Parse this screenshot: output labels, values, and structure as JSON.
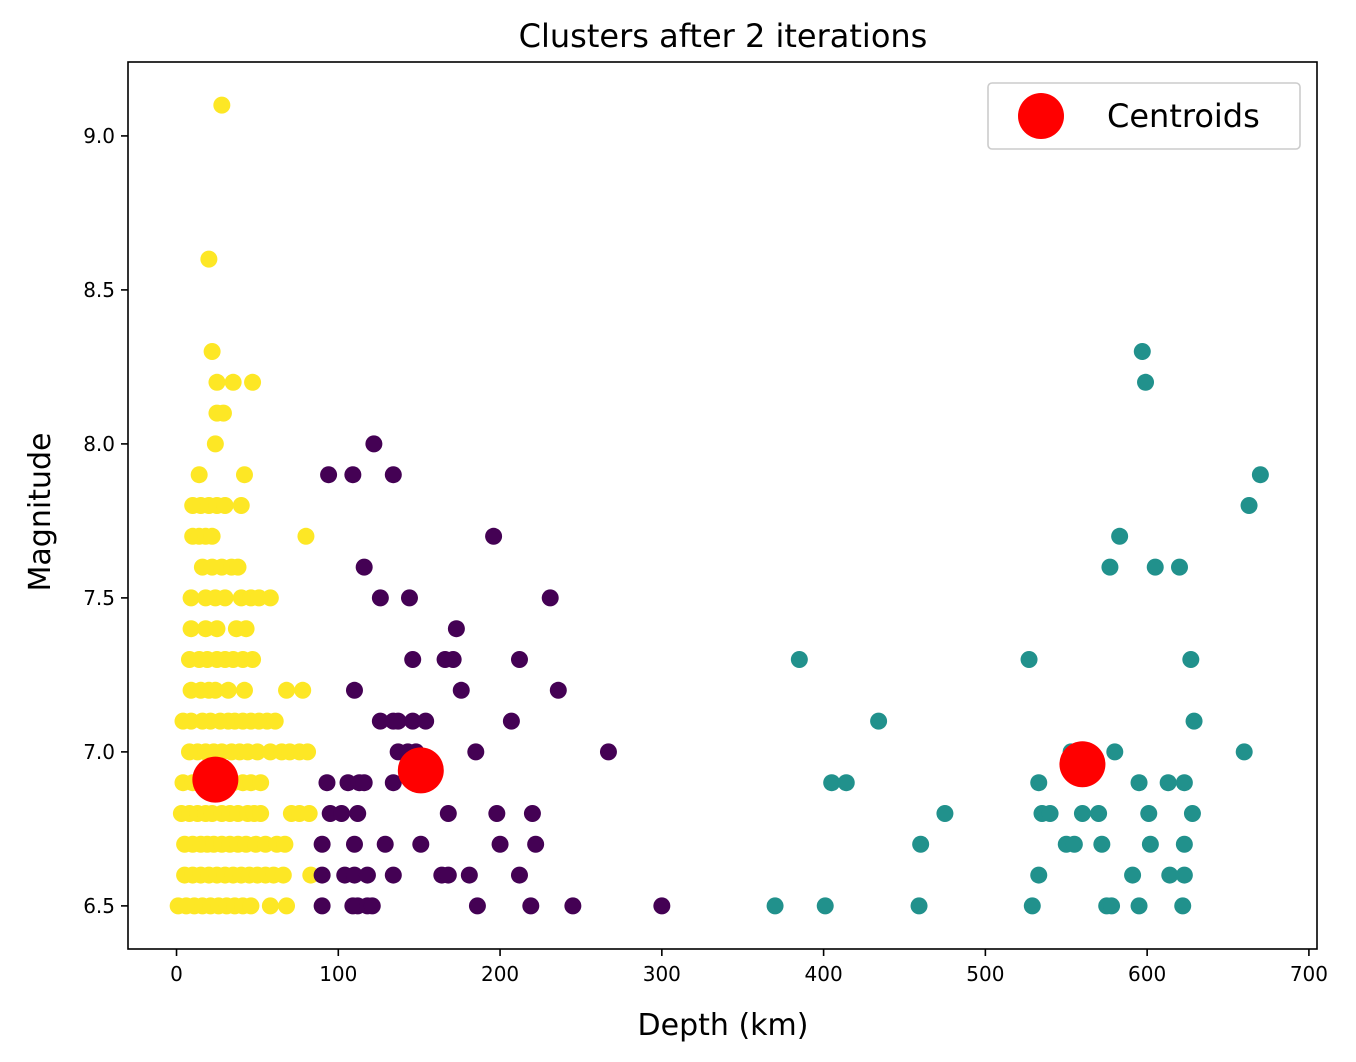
{
  "chart_data": {
    "type": "scatter",
    "title": "Clusters after 2 iterations",
    "xlabel": "Depth (km)",
    "ylabel": "Magnitude",
    "xlim": [
      -30,
      705
    ],
    "ylim": [
      6.36,
      9.24
    ],
    "xticks": [
      0,
      100,
      200,
      300,
      400,
      500,
      600,
      700
    ],
    "yticks": [
      6.5,
      7.0,
      7.5,
      8.0,
      8.5,
      9.0
    ],
    "xtick_labels": [
      "0",
      "100",
      "200",
      "300",
      "400",
      "500",
      "600",
      "700"
    ],
    "ytick_labels": [
      "6.5",
      "7.0",
      "7.5",
      "8.0",
      "8.5",
      "9.0"
    ],
    "grid": false,
    "legend": {
      "position": "top-right",
      "entries": [
        "Centroids"
      ]
    },
    "colors": {
      "cluster_0": "#440154",
      "cluster_1": "#21918c",
      "cluster_2": "#fde725",
      "centroid": "#ff0000"
    },
    "series": [
      {
        "cluster": 2,
        "color": "#fde725",
        "points": [
          [
            28,
            9.1
          ],
          [
            20,
            8.6
          ],
          [
            22,
            8.3
          ],
          [
            25,
            8.2
          ],
          [
            35,
            8.2
          ],
          [
            47,
            8.2
          ],
          [
            25,
            8.1
          ],
          [
            29,
            8.1
          ],
          [
            24,
            8.0
          ],
          [
            14,
            7.9
          ],
          [
            42,
            7.9
          ],
          [
            10,
            7.8
          ],
          [
            15,
            7.8
          ],
          [
            20,
            7.8
          ],
          [
            25,
            7.8
          ],
          [
            30,
            7.8
          ],
          [
            40,
            7.8
          ],
          [
            80,
            7.7
          ],
          [
            10,
            7.7
          ],
          [
            14,
            7.7
          ],
          [
            18,
            7.7
          ],
          [
            22,
            7.7
          ],
          [
            16,
            7.6
          ],
          [
            22,
            7.6
          ],
          [
            28,
            7.6
          ],
          [
            34,
            7.6
          ],
          [
            38,
            7.6
          ],
          [
            9,
            7.5
          ],
          [
            18,
            7.5
          ],
          [
            24,
            7.5
          ],
          [
            30,
            7.5
          ],
          [
            40,
            7.5
          ],
          [
            46,
            7.5
          ],
          [
            51,
            7.5
          ],
          [
            58,
            7.5
          ],
          [
            9,
            7.4
          ],
          [
            18,
            7.4
          ],
          [
            25,
            7.4
          ],
          [
            37,
            7.4
          ],
          [
            43,
            7.4
          ],
          [
            8,
            7.3
          ],
          [
            14,
            7.3
          ],
          [
            19,
            7.3
          ],
          [
            25,
            7.3
          ],
          [
            30,
            7.3
          ],
          [
            35,
            7.3
          ],
          [
            41,
            7.3
          ],
          [
            47,
            7.3
          ],
          [
            9,
            7.2
          ],
          [
            15,
            7.2
          ],
          [
            20,
            7.2
          ],
          [
            24,
            7.2
          ],
          [
            32,
            7.2
          ],
          [
            42,
            7.2
          ],
          [
            68,
            7.2
          ],
          [
            78,
            7.2
          ],
          [
            4,
            7.1
          ],
          [
            9,
            7.1
          ],
          [
            16,
            7.1
          ],
          [
            21,
            7.1
          ],
          [
            27,
            7.1
          ],
          [
            32,
            7.1
          ],
          [
            36,
            7.1
          ],
          [
            41,
            7.1
          ],
          [
            46,
            7.1
          ],
          [
            51,
            7.1
          ],
          [
            56,
            7.1
          ],
          [
            61,
            7.1
          ],
          [
            8,
            7.0
          ],
          [
            13,
            7.0
          ],
          [
            18,
            7.0
          ],
          [
            23,
            7.0
          ],
          [
            28,
            7.0
          ],
          [
            34,
            7.0
          ],
          [
            39,
            7.0
          ],
          [
            44,
            7.0
          ],
          [
            50,
            7.0
          ],
          [
            58,
            7.0
          ],
          [
            65,
            7.0
          ],
          [
            70,
            7.0
          ],
          [
            76,
            7.0
          ],
          [
            81,
            7.0
          ],
          [
            4,
            6.9
          ],
          [
            10,
            6.9
          ],
          [
            16,
            6.9
          ],
          [
            35,
            6.9
          ],
          [
            41,
            6.9
          ],
          [
            46,
            6.9
          ],
          [
            52,
            6.9
          ],
          [
            3,
            6.8
          ],
          [
            8,
            6.8
          ],
          [
            13,
            6.8
          ],
          [
            18,
            6.8
          ],
          [
            22,
            6.8
          ],
          [
            28,
            6.8
          ],
          [
            33,
            6.8
          ],
          [
            38,
            6.8
          ],
          [
            44,
            6.8
          ],
          [
            48,
            6.8
          ],
          [
            52,
            6.8
          ],
          [
            71,
            6.8
          ],
          [
            76,
            6.8
          ],
          [
            82,
            6.8
          ],
          [
            5,
            6.7
          ],
          [
            10,
            6.7
          ],
          [
            15,
            6.7
          ],
          [
            19,
            6.7
          ],
          [
            23,
            6.7
          ],
          [
            28,
            6.7
          ],
          [
            33,
            6.7
          ],
          [
            38,
            6.7
          ],
          [
            43,
            6.7
          ],
          [
            49,
            6.7
          ],
          [
            55,
            6.7
          ],
          [
            62,
            6.7
          ],
          [
            67,
            6.7
          ],
          [
            5,
            6.6
          ],
          [
            10,
            6.6
          ],
          [
            15,
            6.6
          ],
          [
            20,
            6.6
          ],
          [
            25,
            6.6
          ],
          [
            30,
            6.6
          ],
          [
            35,
            6.6
          ],
          [
            40,
            6.6
          ],
          [
            45,
            6.6
          ],
          [
            50,
            6.6
          ],
          [
            55,
            6.6
          ],
          [
            60,
            6.6
          ],
          [
            66,
            6.6
          ],
          [
            83,
            6.6
          ],
          [
            1,
            6.5
          ],
          [
            6,
            6.5
          ],
          [
            11,
            6.5
          ],
          [
            16,
            6.5
          ],
          [
            21,
            6.5
          ],
          [
            26,
            6.5
          ],
          [
            31,
            6.5
          ],
          [
            36,
            6.5
          ],
          [
            41,
            6.5
          ],
          [
            46,
            6.5
          ],
          [
            58,
            6.5
          ],
          [
            68,
            6.5
          ]
        ]
      },
      {
        "cluster": 0,
        "color": "#440154",
        "points": [
          [
            122,
            8.0
          ],
          [
            94,
            7.9
          ],
          [
            109,
            7.9
          ],
          [
            134,
            7.9
          ],
          [
            196,
            7.7
          ],
          [
            116,
            7.6
          ],
          [
            126,
            7.5
          ],
          [
            144,
            7.5
          ],
          [
            231,
            7.5
          ],
          [
            173,
            7.4
          ],
          [
            146,
            7.3
          ],
          [
            166,
            7.3
          ],
          [
            171,
            7.3
          ],
          [
            212,
            7.3
          ],
          [
            110,
            7.2
          ],
          [
            176,
            7.2
          ],
          [
            236,
            7.2
          ],
          [
            126,
            7.1
          ],
          [
            134,
            7.1
          ],
          [
            137,
            7.1
          ],
          [
            146,
            7.1
          ],
          [
            154,
            7.1
          ],
          [
            207,
            7.1
          ],
          [
            137,
            7.0
          ],
          [
            143,
            7.0
          ],
          [
            148,
            7.0
          ],
          [
            185,
            7.0
          ],
          [
            267,
            7.0
          ],
          [
            93,
            6.9
          ],
          [
            106,
            6.9
          ],
          [
            113,
            6.9
          ],
          [
            116,
            6.9
          ],
          [
            134,
            6.9
          ],
          [
            95,
            6.8
          ],
          [
            102,
            6.8
          ],
          [
            112,
            6.8
          ],
          [
            168,
            6.8
          ],
          [
            198,
            6.8
          ],
          [
            220,
            6.8
          ],
          [
            90,
            6.7
          ],
          [
            110,
            6.7
          ],
          [
            129,
            6.7
          ],
          [
            151,
            6.7
          ],
          [
            200,
            6.7
          ],
          [
            222,
            6.7
          ],
          [
            90,
            6.6
          ],
          [
            104,
            6.6
          ],
          [
            110,
            6.6
          ],
          [
            118,
            6.6
          ],
          [
            134,
            6.6
          ],
          [
            164,
            6.6
          ],
          [
            168,
            6.6
          ],
          [
            181,
            6.6
          ],
          [
            212,
            6.6
          ],
          [
            90,
            6.5
          ],
          [
            109,
            6.5
          ],
          [
            112,
            6.5
          ],
          [
            118,
            6.5
          ],
          [
            121,
            6.5
          ],
          [
            186,
            6.5
          ],
          [
            219,
            6.5
          ],
          [
            245,
            6.5
          ],
          [
            300,
            6.5
          ]
        ]
      },
      {
        "cluster": 1,
        "color": "#21918c",
        "points": [
          [
            597,
            8.3
          ],
          [
            599,
            8.2
          ],
          [
            670,
            7.9
          ],
          [
            663,
            7.8
          ],
          [
            583,
            7.7
          ],
          [
            577,
            7.6
          ],
          [
            605,
            7.6
          ],
          [
            620,
            7.6
          ],
          [
            385,
            7.3
          ],
          [
            527,
            7.3
          ],
          [
            627,
            7.3
          ],
          [
            434,
            7.1
          ],
          [
            629,
            7.1
          ],
          [
            553,
            7.0
          ],
          [
            580,
            7.0
          ],
          [
            660,
            7.0
          ],
          [
            405,
            6.9
          ],
          [
            414,
            6.9
          ],
          [
            533,
            6.9
          ],
          [
            595,
            6.9
          ],
          [
            613,
            6.9
          ],
          [
            623,
            6.9
          ],
          [
            475,
            6.8
          ],
          [
            535,
            6.8
          ],
          [
            540,
            6.8
          ],
          [
            560,
            6.8
          ],
          [
            570,
            6.8
          ],
          [
            601,
            6.8
          ],
          [
            628,
            6.8
          ],
          [
            460,
            6.7
          ],
          [
            550,
            6.7
          ],
          [
            555,
            6.7
          ],
          [
            572,
            6.7
          ],
          [
            602,
            6.7
          ],
          [
            623,
            6.7
          ],
          [
            533,
            6.6
          ],
          [
            591,
            6.6
          ],
          [
            614,
            6.6
          ],
          [
            623,
            6.6
          ],
          [
            370,
            6.5
          ],
          [
            401,
            6.5
          ],
          [
            459,
            6.5
          ],
          [
            529,
            6.5
          ],
          [
            575,
            6.5
          ],
          [
            578,
            6.5
          ],
          [
            595,
            6.5
          ],
          [
            622,
            6.5
          ]
        ]
      }
    ],
    "centroids": {
      "name": "Centroids",
      "color": "#ff0000",
      "points": [
        [
          24,
          6.91
        ],
        [
          151,
          6.94
        ],
        [
          560,
          6.96
        ]
      ]
    }
  }
}
